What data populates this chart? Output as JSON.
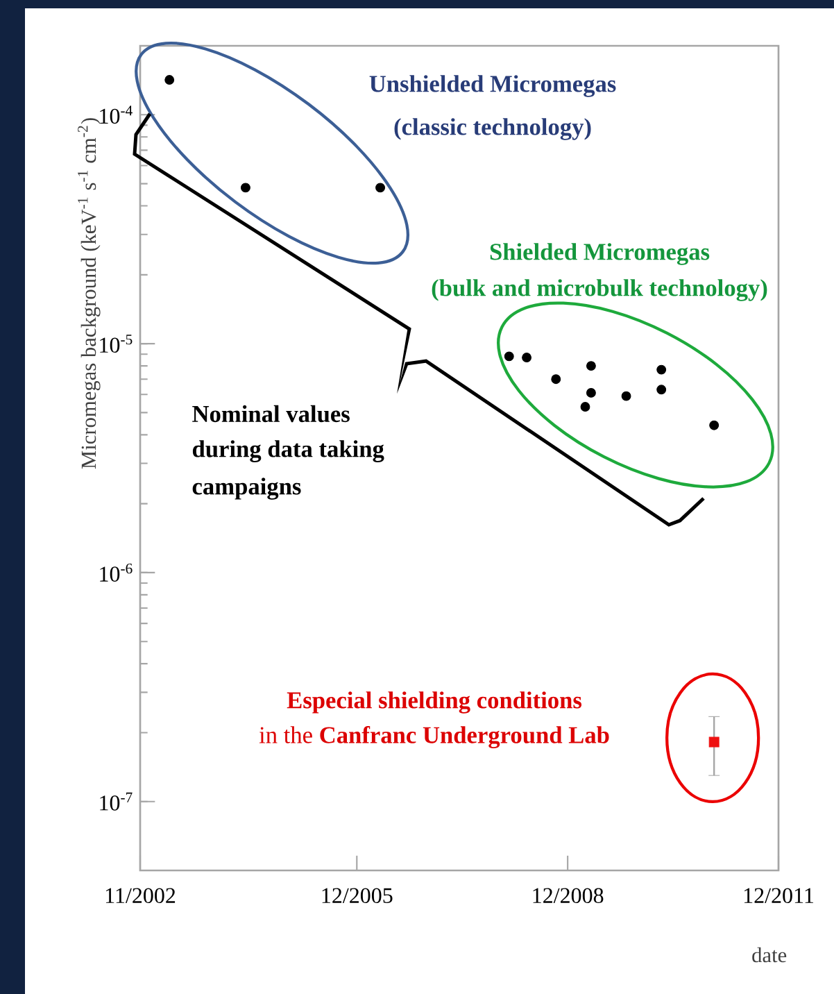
{
  "chart_data": {
    "type": "scatter",
    "xlabel": "date",
    "ylabel": "Micromegas background (keV$^{-1}$ s$^{-1}$ cm$^{-2}$)",
    "log": "y",
    "marker": "circle",
    "xlim": [
      "2002-11",
      "2011-12"
    ],
    "ylim": [
      5e-08,
      0.0002
    ],
    "xticks": [
      {
        "value": "2002-11",
        "label": "11/2002"
      },
      {
        "value": "2005-12",
        "label": "12/2005"
      },
      {
        "value": "2008-12",
        "label": "12/2008"
      },
      {
        "value": "2011-12",
        "label": "12/2011"
      }
    ],
    "yticks": [
      {
        "value": 1e-07,
        "label": "10$^{-7}$"
      },
      {
        "value": 1e-06,
        "label": "10$^{-6}$"
      },
      {
        "value": 1e-05,
        "label": "10$^{-5}$"
      },
      {
        "value": 0.0001,
        "label": "10$^{-4}$"
      }
    ],
    "annotations": [
      "Unshielded Micromegas",
      "(classic technology)",
      "Shielded Micromegas",
      "(bulk and microbulk technology)",
      "Nominal values",
      "during data taking",
      "campaigns",
      "Especial shielding conditions",
      "in the **Canfranc Underground Lab**"
    ],
    "series": [
      {
        "color": "#000000",
        "x": [
          "2003-04",
          "2004-05",
          "2006-04"
        ],
        "values": [
          0.000142,
          4.8e-05,
          4.8e-05
        ]
      },
      {
        "color": "#000000",
        "x": [
          "2008-02",
          "2008-05",
          "2008-10",
          "2009-04",
          "2009-03",
          "2009-04",
          "2009-10",
          "2010-04",
          "2010-04",
          "2011-01"
        ],
        "values": [
          8.8e-06,
          8.7e-06,
          7e-06,
          8e-06,
          5.3e-06,
          6.1e-06,
          5.9e-06,
          7.7e-06,
          6.3e-06,
          4.4e-06
        ]
      },
      {
        "color": "#ee1111",
        "marker": "square",
        "x": [
          "2011-01"
        ],
        "values": [
          1.82e-07
        ],
        "errors": [
          [
            1.3e-07,
            2.35e-07
          ]
        ]
      }
    ]
  }
}
